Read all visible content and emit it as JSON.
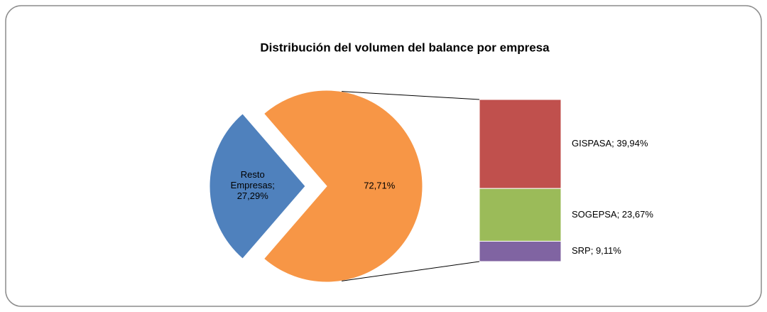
{
  "chart_data": {
    "type": "bar_of_pie",
    "title": "Distribución del volumen del balance por empresa",
    "pie": {
      "values": [
        27.29,
        72.71
      ],
      "value_labels": [
        "Resto Empresas; 27,29%",
        "72,71%"
      ],
      "colors": [
        "#4f81bd",
        "#f79646"
      ]
    },
    "bar": {
      "values": [
        39.94,
        23.67,
        9.11
      ],
      "value_labels": [
        "GISPASA; 39,94%",
        "SOGEPSA; 23,67%",
        "SRP; 9,11%"
      ],
      "colors": [
        "#c0504d",
        "#9bbb59",
        "#8064a2"
      ]
    }
  }
}
